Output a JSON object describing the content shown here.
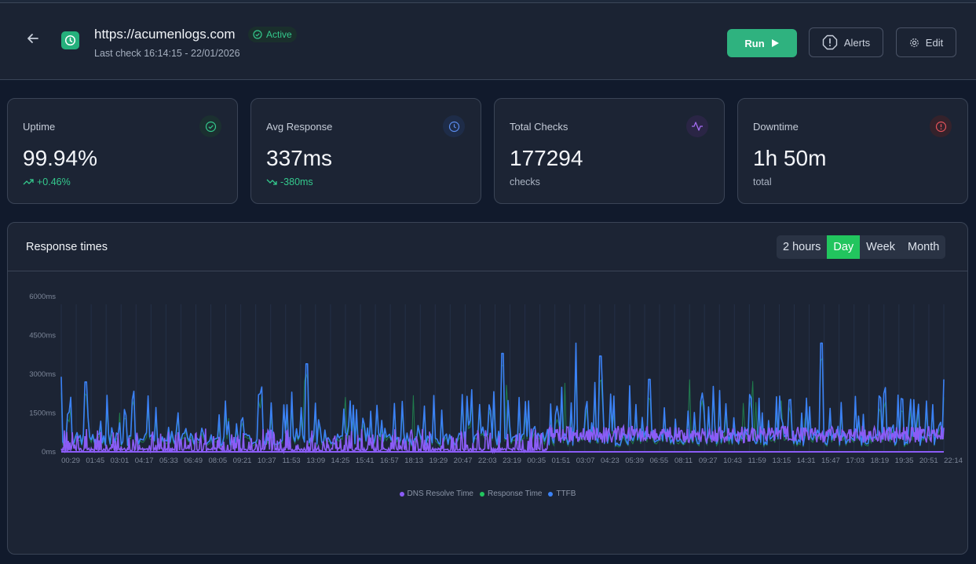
{
  "header": {
    "back_icon": "arrow-left-icon",
    "site_icon": "clock-icon",
    "url": "https://acumenlogs.com",
    "status": "Active",
    "last_check": "Last check 16:14:15 - 22/01/2026",
    "buttons": {
      "run": "Run",
      "alerts": "Alerts",
      "edit": "Edit"
    }
  },
  "cards": [
    {
      "label": "Uptime",
      "value": "99.94%",
      "sub": "+0.46%",
      "icon": "check-circle-icon",
      "icon_color": "#34c98d"
    },
    {
      "label": "Avg Response",
      "value": "337ms",
      "sub": "-380ms",
      "icon": "clock-icon",
      "icon_color": "#5b8def"
    },
    {
      "label": "Total Checks",
      "value": "177294",
      "sub": "checks",
      "icon": "activity-icon",
      "icon_color": "#a46cf0"
    },
    {
      "label": "Downtime",
      "value": "1h 50m",
      "sub": "total",
      "icon": "alert-circle-icon",
      "icon_color": "#e5535b"
    }
  ],
  "chart_panel": {
    "title": "Response times",
    "ranges": [
      "2 hours",
      "Day",
      "Week",
      "Month"
    ],
    "active_range": "Day"
  },
  "chart_data": {
    "type": "area",
    "y_ticks": [
      "0ms",
      "1500ms",
      "3000ms",
      "4500ms",
      "6000ms"
    ],
    "ylim": [
      0,
      6000
    ],
    "x_ticks": [
      "00:29",
      "01:45",
      "03:01",
      "04:17",
      "05:33",
      "06:49",
      "08:05",
      "09:21",
      "10:37",
      "11:53",
      "13:09",
      "14:25",
      "15:41",
      "16:57",
      "18:13",
      "19:29",
      "20:47",
      "22:03",
      "23:19",
      "00:35",
      "01:51",
      "03:07",
      "04:23",
      "05:39",
      "06:55",
      "08:11",
      "09:27",
      "10:43",
      "11:59",
      "13:15",
      "14:31",
      "15:47",
      "17:03",
      "18:19",
      "19:35",
      "20:51",
      "22:14"
    ],
    "series": [
      {
        "name": "DNS Resolve Time",
        "color": "#8b5cf6"
      },
      {
        "name": "Response Time",
        "color": "#22c55e"
      },
      {
        "name": "TTFB",
        "color": "#3b82f6"
      }
    ],
    "peaks_ms": [
      {
        "x": "00:29",
        "y": 2900
      },
      {
        "x": "01:45",
        "y": 2700
      },
      {
        "x": "13:09",
        "y": 3400
      },
      {
        "x": "23:19",
        "y": 3800
      },
      {
        "x": "03:07",
        "y": 4200
      },
      {
        "x": "04:23",
        "y": 3700
      },
      {
        "x": "15:47",
        "y": 4200
      },
      {
        "x": "06:55",
        "y": 2800
      },
      {
        "x": "22:14",
        "y": 2800
      }
    ],
    "grid": false,
    "legend_position": "bottom-center"
  }
}
